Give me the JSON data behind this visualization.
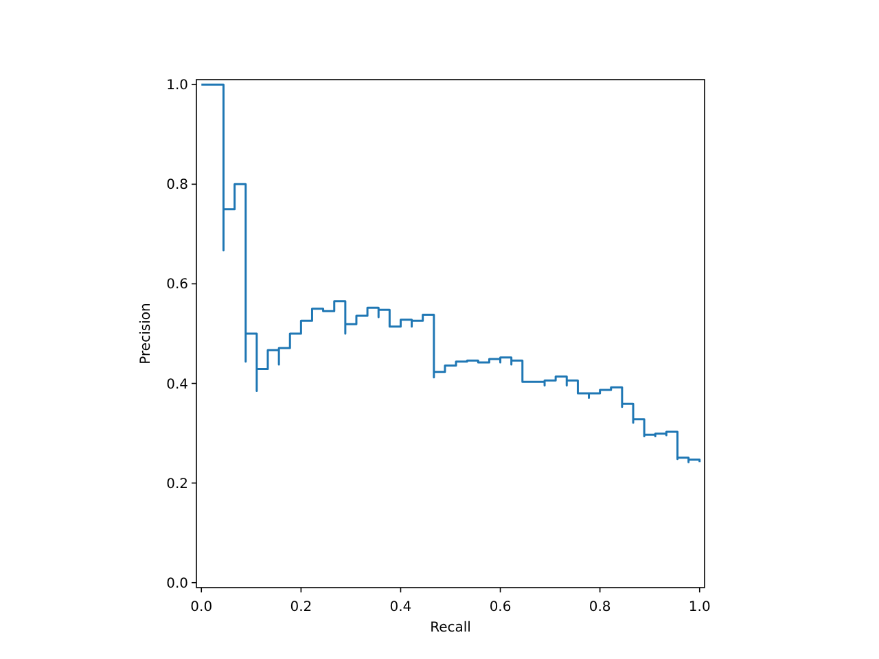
{
  "chart_data": {
    "type": "step",
    "xlabel": "Recall",
    "ylabel": "Precision",
    "color": "#1f77b4",
    "x": [
      0,
      0.0444,
      0.0444,
      0.0667,
      0.0889,
      0.0889,
      0.1111,
      0.1111,
      0.1333,
      0.1556,
      0.1556,
      0.1778,
      0.2,
      0.2222,
      0.2444,
      0.2667,
      0.2889,
      0.2889,
      0.3111,
      0.3333,
      0.3556,
      0.3556,
      0.3778,
      0.4,
      0.4222,
      0.4222,
      0.4444,
      0.4667,
      0.4667,
      0.4889,
      0.5111,
      0.5333,
      0.5556,
      0.5778,
      0.6,
      0.6,
      0.6222,
      0.6222,
      0.6444,
      0.6667,
      0.6889,
      0.6889,
      0.7111,
      0.7333,
      0.7333,
      0.7556,
      0.7778,
      0.7778,
      0.8,
      0.8222,
      0.8444,
      0.8444,
      0.8667,
      0.8667,
      0.8889,
      0.8889,
      0.9111,
      0.9111,
      0.9333,
      0.9333,
      0.9556,
      0.9556,
      0.9778,
      0.9778,
      1.0,
      1.0
    ],
    "values": [
      1.0,
      1.0,
      0.667,
      0.75,
      0.8,
      0.444,
      0.5,
      0.385,
      0.429,
      0.467,
      0.438,
      0.471,
      0.5,
      0.526,
      0.55,
      0.545,
      0.565,
      0.5,
      0.519,
      0.536,
      0.552,
      0.533,
      0.548,
      0.514,
      0.528,
      0.514,
      0.526,
      0.538,
      0.412,
      0.423,
      0.436,
      0.444,
      0.446,
      0.442,
      0.449,
      0.442,
      0.452,
      0.438,
      0.446,
      0.403,
      0.403,
      0.396,
      0.406,
      0.414,
      0.396,
      0.406,
      0.38,
      0.371,
      0.38,
      0.387,
      0.392,
      0.353,
      0.359,
      0.321,
      0.328,
      0.294,
      0.297,
      0.294,
      0.299,
      0.296,
      0.303,
      0.248,
      0.251,
      0.242,
      0.247,
      0.242
    ],
    "xlim": [
      -0.01,
      1.01
    ],
    "ylim": [
      -0.01,
      1.01
    ],
    "xticks": [
      {
        "value": 0,
        "label": "0.0"
      },
      {
        "value": 0.2,
        "label": "0.2"
      },
      {
        "value": 0.4,
        "label": "0.4"
      },
      {
        "value": 0.6,
        "label": "0.6"
      },
      {
        "value": 0.8,
        "label": "0.8"
      },
      {
        "value": 1,
        "label": "1.0"
      }
    ],
    "yticks": [
      {
        "value": 0,
        "label": "0.0"
      },
      {
        "value": 0.2,
        "label": "0.2"
      },
      {
        "value": 0.4,
        "label": "0.4"
      },
      {
        "value": 0.6,
        "label": "0.6"
      },
      {
        "value": 0.8,
        "label": "0.8"
      },
      {
        "value": 1,
        "label": "1.0"
      }
    ]
  }
}
